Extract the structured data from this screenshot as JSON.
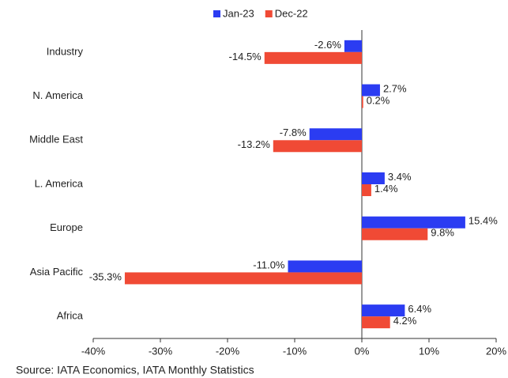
{
  "chart_data": {
    "type": "hbar",
    "categories": [
      "Industry",
      "N. America",
      "Middle East",
      "L. America",
      "Europe",
      "Asia Pacific",
      "Africa"
    ],
    "series": [
      {
        "name": "Jan-23",
        "color": "#2b3cf2",
        "values": [
          -2.6,
          2.7,
          -7.8,
          3.4,
          15.4,
          -11.0,
          6.4
        ],
        "value_labels": [
          "-2.6%",
          "2.7%",
          "-7.8%",
          "3.4%",
          "15.4%",
          "-11.0%",
          "6.4%"
        ]
      },
      {
        "name": "Dec-22",
        "color": "#f04a35",
        "values": [
          -14.5,
          0.2,
          -13.2,
          1.4,
          9.8,
          -35.3,
          4.2
        ],
        "value_labels": [
          "-14.5%",
          "0.2%",
          "-13.2%",
          "1.4%",
          "9.8%",
          "-35.3%",
          "4.2%"
        ]
      }
    ],
    "xlim": [
      -40,
      20
    ],
    "xticks": [
      {
        "value": -40,
        "label": "-40%"
      },
      {
        "value": -30,
        "label": "-30%"
      },
      {
        "value": -20,
        "label": "-20%"
      },
      {
        "value": -10,
        "label": "-10%"
      },
      {
        "value": 0,
        "label": "0%"
      },
      {
        "value": 10,
        "label": "10%"
      },
      {
        "value": 20,
        "label": "20%"
      }
    ],
    "source": "Source: IATA Economics, IATA Monthly Statistics"
  }
}
